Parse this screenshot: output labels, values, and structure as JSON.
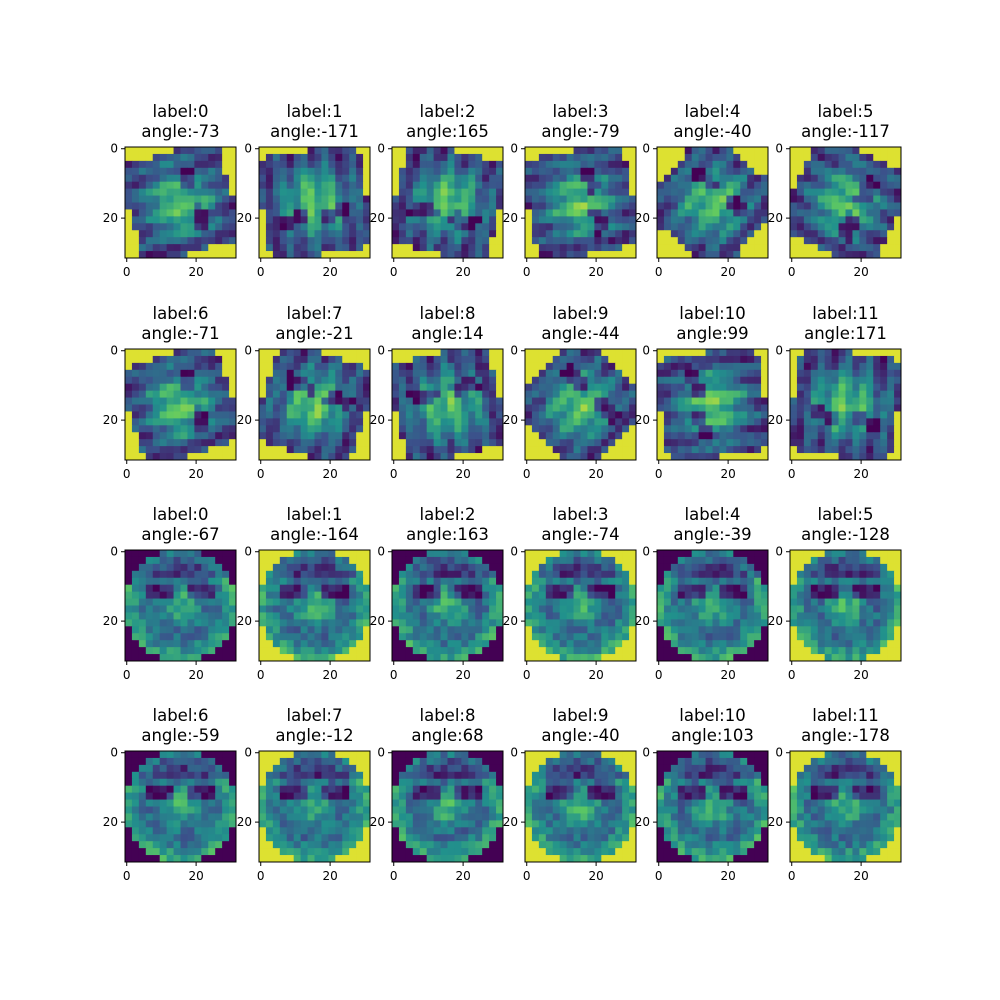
{
  "figure": {
    "rows": 4,
    "cols": 6,
    "colormap": "viridis",
    "colors": [
      "#440154",
      "#3b528b",
      "#21918c",
      "#5ec962",
      "#fde725"
    ]
  },
  "chart_data": {
    "type": "heatmap",
    "image_size": [
      32,
      32
    ],
    "xlim": [
      0,
      31
    ],
    "ylim": [
      31,
      0
    ],
    "xticks": [
      "0",
      "20"
    ],
    "yticks": [
      "0",
      "20"
    ],
    "panels": [
      {
        "label": "label:0",
        "angle": "angle:-73"
      },
      {
        "label": "label:1",
        "angle": "angle:-171"
      },
      {
        "label": "label:2",
        "angle": "angle:165"
      },
      {
        "label": "label:3",
        "angle": "angle:-79"
      },
      {
        "label": "label:4",
        "angle": "angle:-40"
      },
      {
        "label": "label:5",
        "angle": "angle:-117"
      },
      {
        "label": "label:6",
        "angle": "angle:-71"
      },
      {
        "label": "label:7",
        "angle": "angle:-21"
      },
      {
        "label": "label:8",
        "angle": "angle:14"
      },
      {
        "label": "label:9",
        "angle": "angle:-44"
      },
      {
        "label": "label:10",
        "angle": "angle:99"
      },
      {
        "label": "label:11",
        "angle": "angle:171"
      },
      {
        "label": "label:0",
        "angle": "angle:-67"
      },
      {
        "label": "label:1",
        "angle": "angle:-164"
      },
      {
        "label": "label:2",
        "angle": "angle:163"
      },
      {
        "label": "label:3",
        "angle": "angle:-74"
      },
      {
        "label": "label:4",
        "angle": "angle:-39"
      },
      {
        "label": "label:5",
        "angle": "angle:-128"
      },
      {
        "label": "label:6",
        "angle": "angle:-59"
      },
      {
        "label": "label:7",
        "angle": "angle:-12"
      },
      {
        "label": "label:8",
        "angle": "angle:68"
      },
      {
        "label": "label:9",
        "angle": "angle:-40"
      },
      {
        "label": "label:10",
        "angle": "angle:103"
      },
      {
        "label": "label:11",
        "angle": "angle:-178"
      }
    ]
  }
}
